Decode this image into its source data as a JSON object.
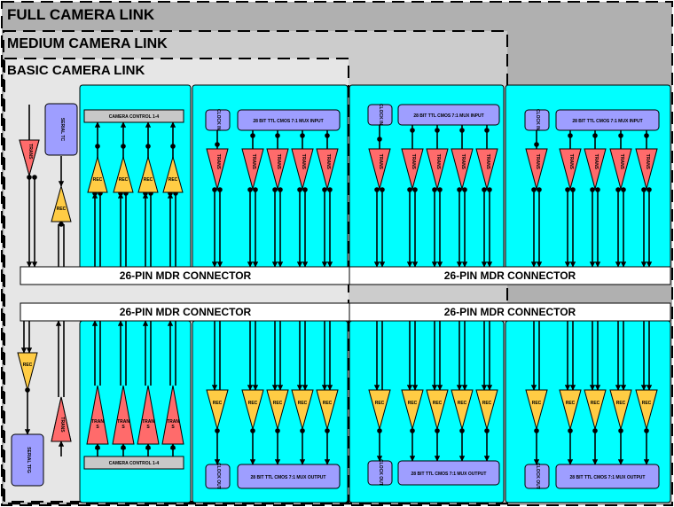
{
  "titles": {
    "full": "FULL CAMERA LINK",
    "medium": "MEDIUM CAMERA LINK",
    "basic": "BASIC CAMERA LINK"
  },
  "connector_label": "26-PIN MDR CONNECTOR",
  "labels": {
    "camera_control": "CAMERA CONTROL 1-4",
    "serial_tc": "SERIAL TC",
    "serial_tfg": "SERIAL TFG",
    "clock_in": "CLOCK IN",
    "clock_out": "CLOCK OUT",
    "mux_input": "28 BIT TTL CMOS 7:1 MUX INPUT",
    "mux_output": "28 BIT TTL CMOS 7:1 MUX OUTPUT",
    "trans": "TRANS",
    "rec": "REC",
    "tran_lines": [
      "TRAN",
      "S"
    ]
  },
  "colors": {
    "full_bg": "#b0b0b0",
    "medium_bg": "#cccccc",
    "basic_bg": "#e6e6e6",
    "cyan": "#00ffff",
    "receiver": "#ffcc44",
    "transmitter": "#ff6b6b",
    "chip": "#9e9eff",
    "control_bar": "#c8c8c8"
  }
}
